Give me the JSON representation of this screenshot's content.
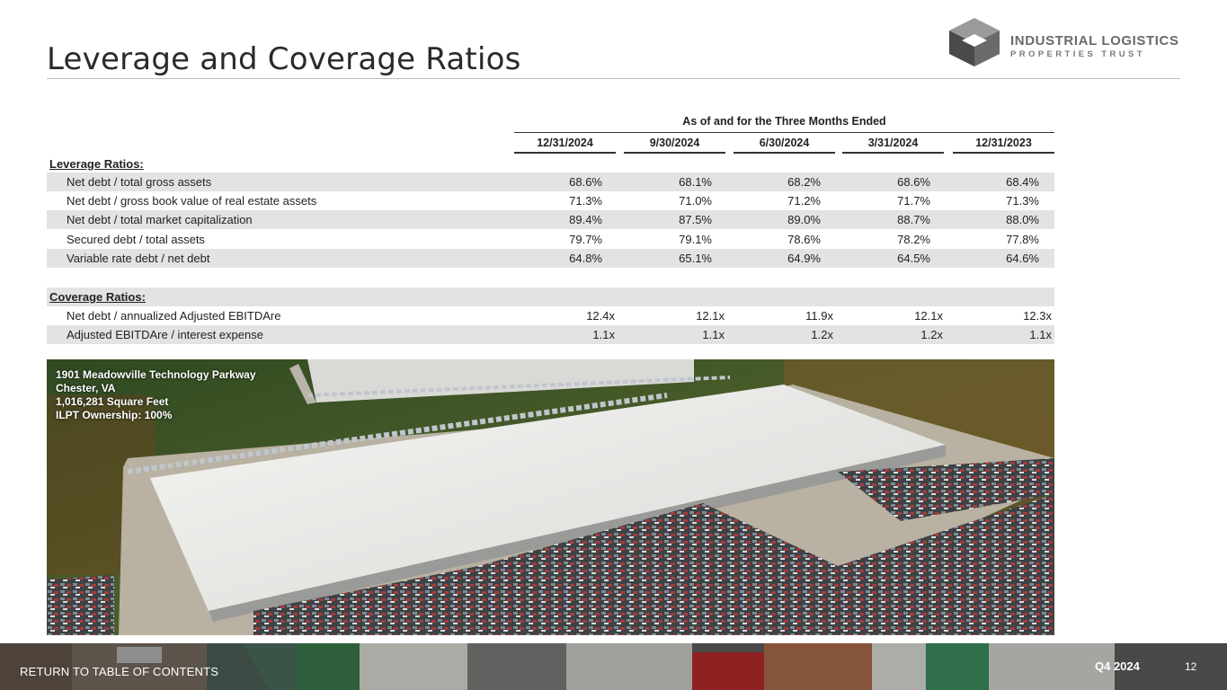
{
  "page": {
    "title": "Leverage and Coverage Ratios",
    "company_line1": "INDUSTRIAL LOGISTICS",
    "company_line2": "PROPERTIES TRUST"
  },
  "table": {
    "group_header": "As of and for the Three Months Ended",
    "columns": [
      "12/31/2024",
      "9/30/2024",
      "6/30/2024",
      "3/31/2024",
      "12/31/2023"
    ],
    "leverage_header": "Leverage Ratios:",
    "leverage_rows": [
      {
        "label": "Net debt / total gross assets",
        "values": [
          "68.6%",
          "68.1%",
          "68.2%",
          "68.6%",
          "68.4%"
        ]
      },
      {
        "label": "Net debt / gross book value of real estate assets",
        "values": [
          "71.3%",
          "71.0%",
          "71.2%",
          "71.7%",
          "71.3%"
        ]
      },
      {
        "label": "Net debt / total market capitalization",
        "values": [
          "89.4%",
          "87.5%",
          "89.0%",
          "88.7%",
          "88.0%"
        ]
      },
      {
        "label": "Secured debt / total assets",
        "values": [
          "79.7%",
          "79.1%",
          "78.6%",
          "78.2%",
          "77.8%"
        ]
      },
      {
        "label": "Variable rate debt / net debt",
        "values": [
          "64.8%",
          "65.1%",
          "64.9%",
          "64.5%",
          "64.6%"
        ]
      }
    ],
    "coverage_header": "Coverage Ratios:",
    "coverage_rows": [
      {
        "label": "Net debt / annualized Adjusted EBITDAre",
        "values": [
          "12.4x",
          "12.1x",
          "11.9x",
          "12.1x",
          "12.3x"
        ]
      },
      {
        "label": "Adjusted EBITDAre / interest expense",
        "values": [
          "1.1x",
          "1.1x",
          "1.2x",
          "1.2x",
          "1.1x"
        ]
      }
    ]
  },
  "property": {
    "name": "1901 Meadowville Technology Parkway",
    "location": "Chester, VA",
    "size": "1,016,281 Square Feet",
    "ownership": "ILPT Ownership: 100%"
  },
  "footer": {
    "toc_link": "RETURN TO TABLE OF CONTENTS",
    "period": "Q4 2024",
    "page_number": "12"
  },
  "colors": {
    "row_shade": "#e3e3e3",
    "logo_dark": "#4a4a4a",
    "logo_light": "#9a9a9a"
  },
  "icons": [
    "ilpt-logo-icon"
  ]
}
